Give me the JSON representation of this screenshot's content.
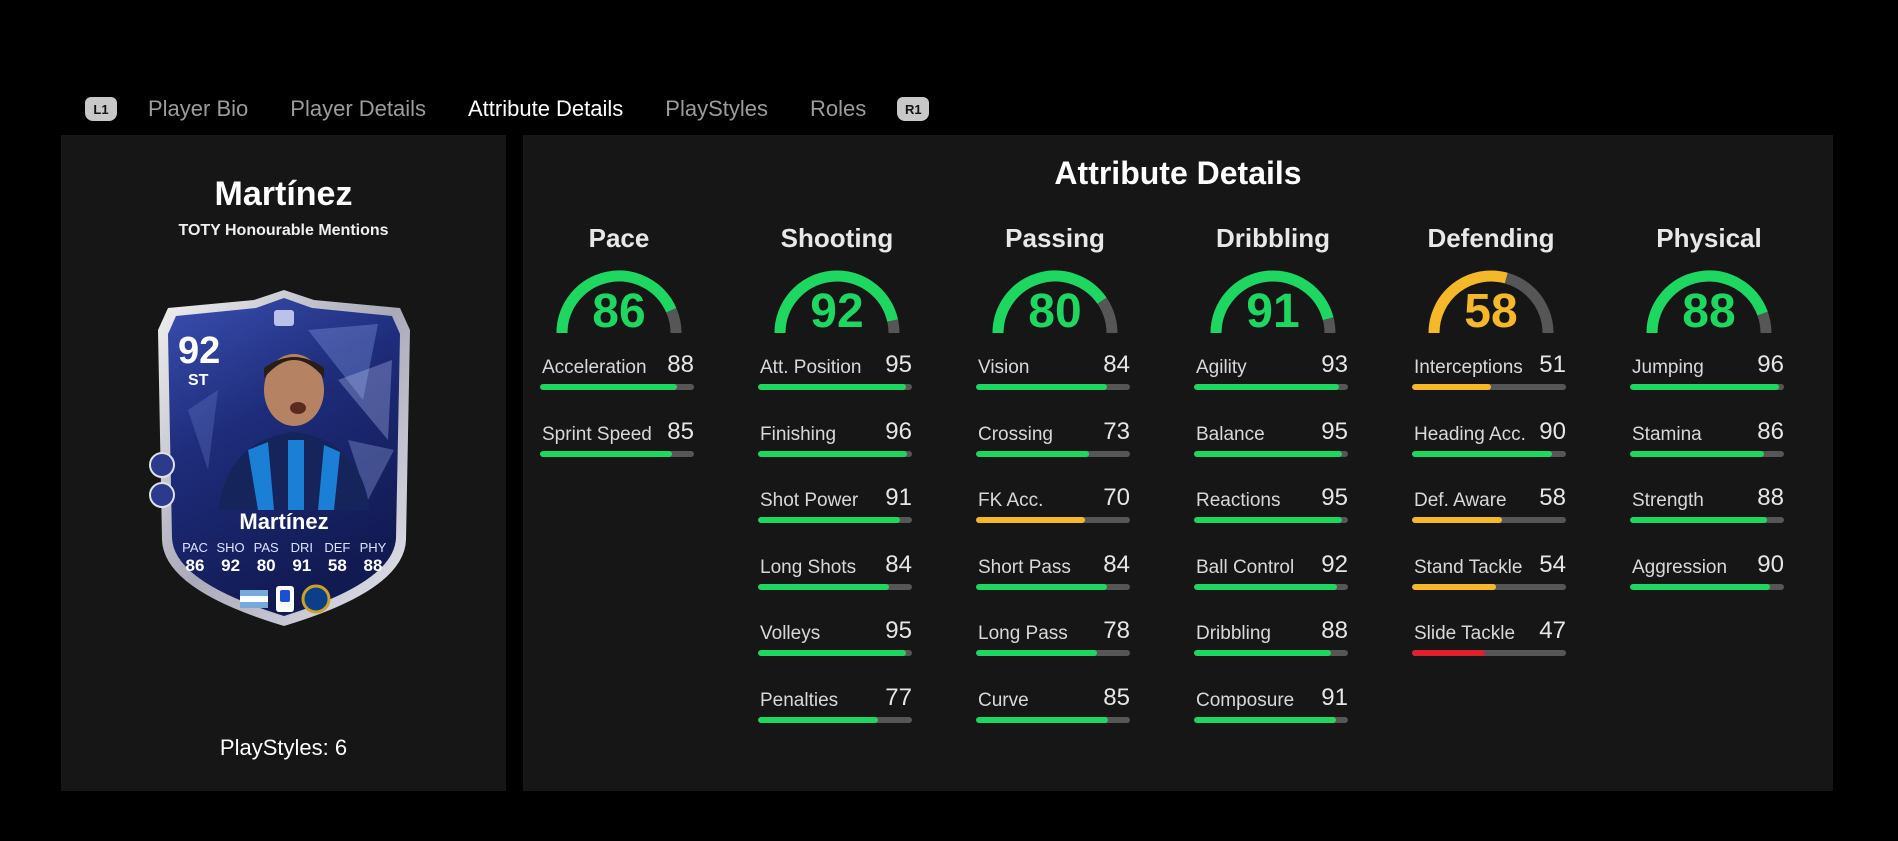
{
  "tabs": {
    "left_key": "L1",
    "right_key": "R1",
    "items": [
      "Player Bio",
      "Player Details",
      "Attribute Details",
      "PlayStyles",
      "Roles"
    ],
    "active": "Attribute Details"
  },
  "player": {
    "name": "Martínez",
    "subtitle": "TOTY Honourable Mentions",
    "playstyles": "PlayStyles: 6",
    "card": {
      "rating": "92",
      "position": "ST",
      "name": "Martínez",
      "stats": [
        {
          "label": "PAC",
          "value": "86"
        },
        {
          "label": "SHO",
          "value": "92"
        },
        {
          "label": "PAS",
          "value": "80"
        },
        {
          "label": "DRI",
          "value": "91"
        },
        {
          "label": "DEF",
          "value": "58"
        },
        {
          "label": "PHY",
          "value": "88"
        }
      ]
    }
  },
  "colors": {
    "green": "#1ed760",
    "yellow": "#f4b829",
    "red": "#e0202a",
    "track": "#565656"
  },
  "attribute_details": {
    "title": "Attribute Details",
    "categories": [
      {
        "name": "Pace",
        "value": 86,
        "color": "green",
        "attributes": [
          {
            "name": "Acceleration",
            "value": 88,
            "color": "green"
          },
          {
            "name": "Sprint Speed",
            "value": 85,
            "color": "green"
          }
        ]
      },
      {
        "name": "Shooting",
        "value": 92,
        "color": "green",
        "attributes": [
          {
            "name": "Att. Position",
            "value": 95,
            "color": "green"
          },
          {
            "name": "Finishing",
            "value": 96,
            "color": "green"
          },
          {
            "name": "Shot Power",
            "value": 91,
            "color": "green"
          },
          {
            "name": "Long Shots",
            "value": 84,
            "color": "green"
          },
          {
            "name": "Volleys",
            "value": 95,
            "color": "green"
          },
          {
            "name": "Penalties",
            "value": 77,
            "color": "green"
          }
        ]
      },
      {
        "name": "Passing",
        "value": 80,
        "color": "green",
        "attributes": [
          {
            "name": "Vision",
            "value": 84,
            "color": "green"
          },
          {
            "name": "Crossing",
            "value": 73,
            "color": "green"
          },
          {
            "name": "FK Acc.",
            "value": 70,
            "color": "yellow"
          },
          {
            "name": "Short Pass",
            "value": 84,
            "color": "green"
          },
          {
            "name": "Long Pass",
            "value": 78,
            "color": "green"
          },
          {
            "name": "Curve",
            "value": 85,
            "color": "green"
          }
        ]
      },
      {
        "name": "Dribbling",
        "value": 91,
        "color": "green",
        "attributes": [
          {
            "name": "Agility",
            "value": 93,
            "color": "green"
          },
          {
            "name": "Balance",
            "value": 95,
            "color": "green"
          },
          {
            "name": "Reactions",
            "value": 95,
            "color": "green"
          },
          {
            "name": "Ball Control",
            "value": 92,
            "color": "green"
          },
          {
            "name": "Dribbling",
            "value": 88,
            "color": "green"
          },
          {
            "name": "Composure",
            "value": 91,
            "color": "green"
          }
        ]
      },
      {
        "name": "Defending",
        "value": 58,
        "color": "yellow",
        "attributes": [
          {
            "name": "Interceptions",
            "value": 51,
            "color": "yellow"
          },
          {
            "name": "Heading Acc.",
            "value": 90,
            "color": "green"
          },
          {
            "name": "Def. Aware",
            "value": 58,
            "color": "yellow"
          },
          {
            "name": "Stand Tackle",
            "value": 54,
            "color": "yellow"
          },
          {
            "name": "Slide Tackle",
            "value": 47,
            "color": "red"
          }
        ]
      },
      {
        "name": "Physical",
        "value": 88,
        "color": "green",
        "attributes": [
          {
            "name": "Jumping",
            "value": 96,
            "color": "green"
          },
          {
            "name": "Stamina",
            "value": 86,
            "color": "green"
          },
          {
            "name": "Strength",
            "value": 88,
            "color": "green"
          },
          {
            "name": "Aggression",
            "value": 90,
            "color": "green"
          }
        ]
      }
    ]
  }
}
